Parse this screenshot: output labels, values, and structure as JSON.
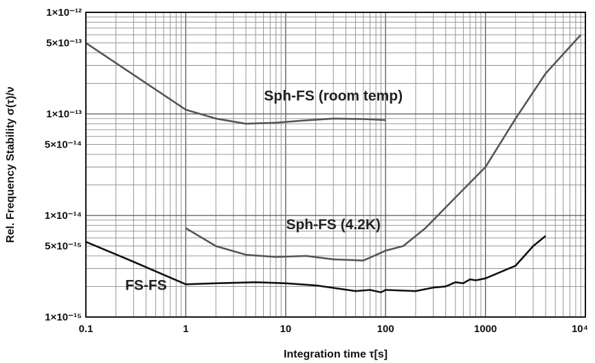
{
  "chart_data": {
    "type": "line",
    "xscale": "log",
    "yscale": "log",
    "xlim": [
      0.1,
      10000
    ],
    "ylim": [
      1e-15,
      1e-12
    ],
    "grid": true,
    "xlabel": "Integration time τ[s]",
    "ylabel": "Rel. Frequency Stability σ(τ)/ν",
    "xticks": [
      {
        "value": 0.1,
        "label": "0.1"
      },
      {
        "value": 1,
        "label": "1"
      },
      {
        "value": 10,
        "label": "10"
      },
      {
        "value": 100,
        "label": "100"
      },
      {
        "value": 1000,
        "label": "1000"
      },
      {
        "value": 10000,
        "label": "10⁴"
      }
    ],
    "yticks": [
      {
        "value": 1e-12,
        "label": "1×10⁻¹²"
      },
      {
        "value": 5e-13,
        "label": "5×10⁻¹³"
      },
      {
        "value": 1e-13,
        "label": "1×10⁻¹³"
      },
      {
        "value": 5e-14,
        "label": "5×10⁻¹⁴"
      },
      {
        "value": 1e-14,
        "label": "1×10⁻¹⁴"
      },
      {
        "value": 5e-15,
        "label": "5×10⁻¹⁵"
      },
      {
        "value": 1e-15,
        "label": "1×10⁻¹⁵"
      }
    ],
    "series": [
      {
        "name": "Sph-FS (room temp)",
        "color": "#555555",
        "points": [
          [
            0.1,
            5e-13
          ],
          [
            1,
            1.1e-13
          ],
          [
            2,
            9e-14
          ],
          [
            4,
            8e-14
          ],
          [
            8,
            8.2e-14
          ],
          [
            15,
            8.6e-14
          ],
          [
            30,
            9e-14
          ],
          [
            60,
            8.9e-14
          ],
          [
            100,
            8.7e-14
          ]
        ]
      },
      {
        "name": "Sph-FS (4.2K)",
        "color": "#555555",
        "points": [
          [
            1,
            7.5e-15
          ],
          [
            2,
            5e-15
          ],
          [
            4,
            4.1e-15
          ],
          [
            8,
            3.9e-15
          ],
          [
            16,
            4e-15
          ],
          [
            30,
            3.7e-15
          ],
          [
            60,
            3.6e-15
          ],
          [
            100,
            4.5e-15
          ],
          [
            150,
            5e-15
          ],
          [
            250,
            7.5e-15
          ],
          [
            500,
            1.5e-14
          ],
          [
            1000,
            3e-14
          ],
          [
            2000,
            9e-14
          ],
          [
            4000,
            2.5e-13
          ],
          [
            9000,
            6e-13
          ]
        ]
      },
      {
        "name": "FS-FS",
        "color": "#111111",
        "points": [
          [
            0.1,
            5.5e-15
          ],
          [
            0.3,
            3.5e-15
          ],
          [
            1,
            2.1e-15
          ],
          [
            2,
            2.15e-15
          ],
          [
            5,
            2.2e-15
          ],
          [
            10,
            2.15e-15
          ],
          [
            20,
            2.05e-15
          ],
          [
            50,
            1.8e-15
          ],
          [
            70,
            1.85e-15
          ],
          [
            90,
            1.75e-15
          ],
          [
            100,
            1.85e-15
          ],
          [
            200,
            1.8e-15
          ],
          [
            300,
            1.95e-15
          ],
          [
            400,
            2e-15
          ],
          [
            500,
            2.2e-15
          ],
          [
            600,
            2.15e-15
          ],
          [
            700,
            2.35e-15
          ],
          [
            800,
            2.3e-15
          ],
          [
            1000,
            2.4e-15
          ],
          [
            2000,
            3.2e-15
          ],
          [
            3000,
            5e-15
          ],
          [
            4000,
            6.3e-15
          ]
        ]
      }
    ],
    "annotations": [
      {
        "text": "Sph-FS (room temp)",
        "x": 30,
        "y": 1.35e-13
      },
      {
        "text": "Sph-FS (4.2K)",
        "x": 30,
        "y": 7.3e-15
      },
      {
        "text": "FS-FS",
        "x": 0.4,
        "y": 1.85e-15
      }
    ]
  }
}
